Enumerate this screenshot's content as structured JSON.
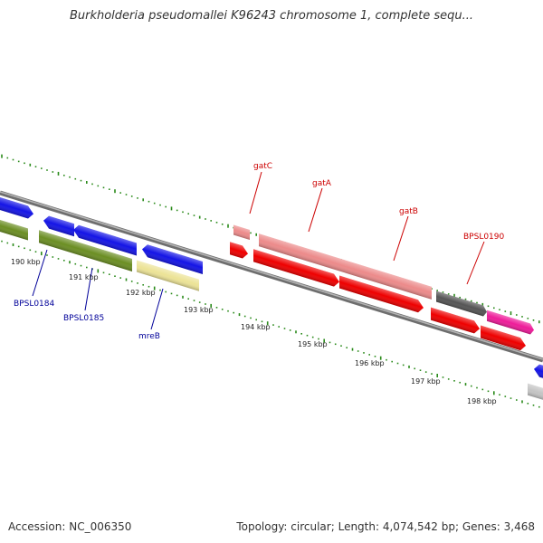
{
  "title": "Burkholderia pseudomallei K96243 chromosome 1, complete sequ...",
  "footer": {
    "accession_label": "Accession:",
    "accession": "NC_006350",
    "topology_label": "Topology:",
    "topology": "circular",
    "length_label": "Length:",
    "length": "4,074,542 bp",
    "genes_label": "Genes:",
    "genes": "3,468"
  },
  "colors": {
    "backbone": "#8a8a8a",
    "tick": "#2a8a1a",
    "label_forward_strand": "#cc0000",
    "label_reverse_strand": "#000099"
  },
  "position_scale": [
    {
      "label": "190 kbp"
    },
    {
      "label": "191 kbp"
    },
    {
      "label": "192 kbp"
    },
    {
      "label": "193 kbp"
    },
    {
      "label": "194 kbp"
    },
    {
      "label": "195 kbp"
    },
    {
      "label": "196 kbp"
    },
    {
      "label": "197 kbp"
    },
    {
      "label": "198 kbp"
    }
  ],
  "gene_labels": [
    {
      "name": "gatC"
    },
    {
      "name": "gatA"
    },
    {
      "name": "gatB"
    },
    {
      "name": "BPSL0190"
    },
    {
      "name": "BPSL0184"
    },
    {
      "name": "BPSL0185"
    },
    {
      "name": "mreB"
    }
  ]
}
